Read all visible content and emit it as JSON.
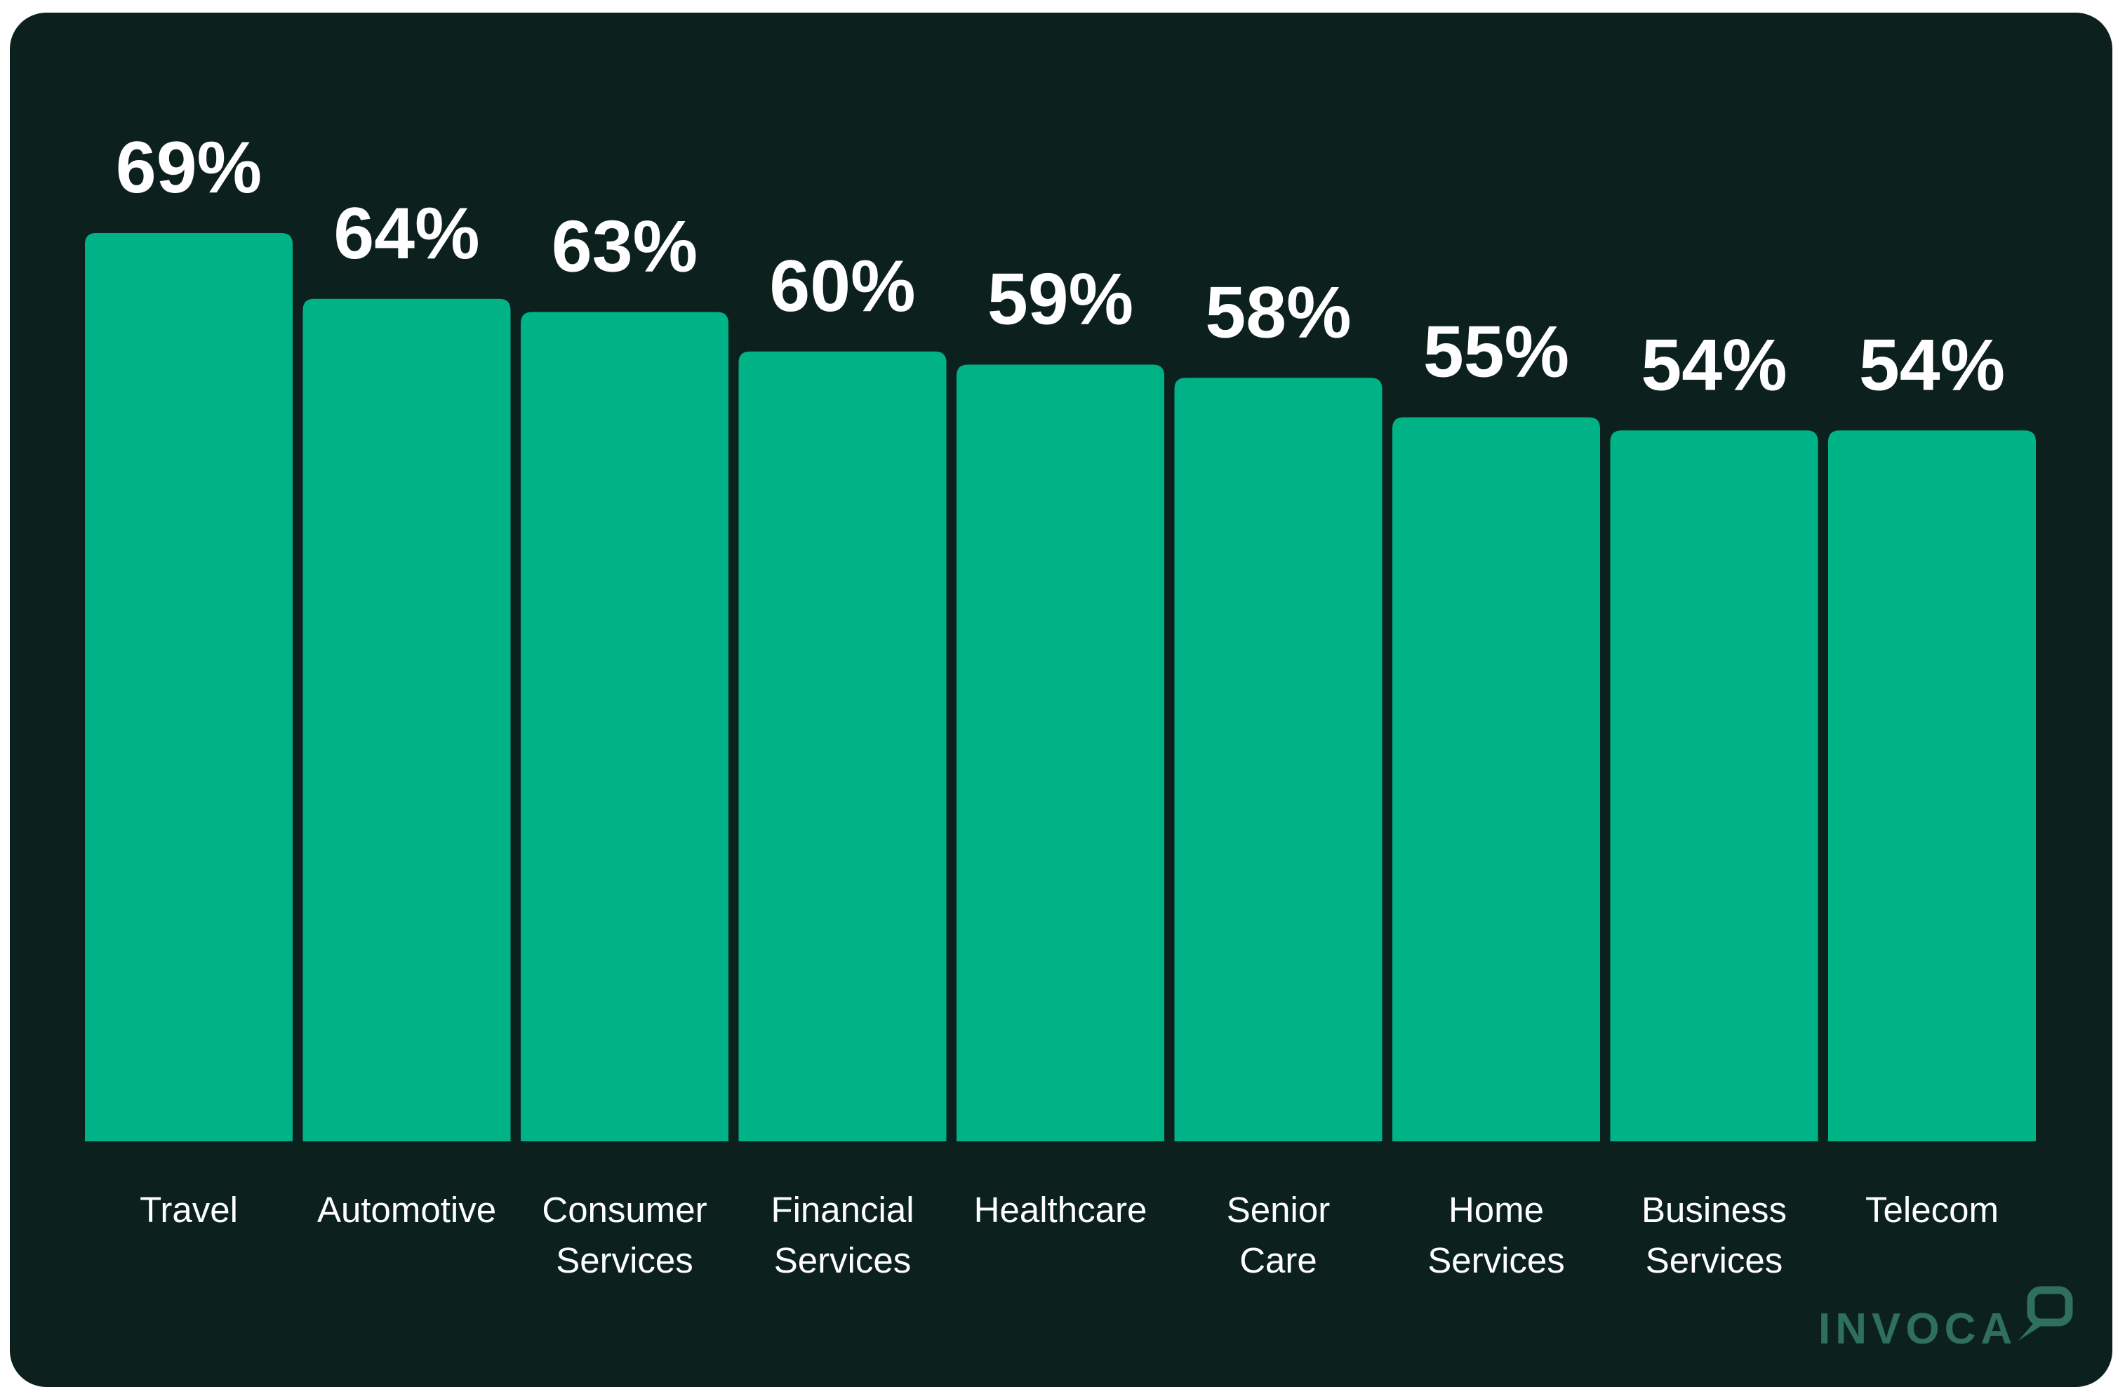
{
  "chart_data": {
    "type": "bar",
    "categories": [
      "Travel",
      "Automotive",
      "Consumer Services",
      "Financial Services",
      "Healthcare",
      "Senior Care",
      "Home Services",
      "Business Services",
      "Telecom"
    ],
    "category_lines": [
      [
        "Travel"
      ],
      [
        "Automotive"
      ],
      [
        "Consumer",
        "Services"
      ],
      [
        "Financial",
        "Services"
      ],
      [
        "Healthcare"
      ],
      [
        "Senior",
        "Care"
      ],
      [
        "Home",
        "Services"
      ],
      [
        "Business",
        "Services"
      ],
      [
        "Telecom"
      ]
    ],
    "values": [
      69,
      64,
      63,
      60,
      59,
      58,
      55,
      54,
      54
    ],
    "value_labels": [
      "69%",
      "64%",
      "63%",
      "60%",
      "59%",
      "58%",
      "55%",
      "54%",
      "54%"
    ],
    "unit": "%",
    "title": "",
    "xlabel": "",
    "ylabel": "",
    "grid": false,
    "legend": "none"
  },
  "colors": {
    "background": "#0c211d",
    "bar": "#00b386",
    "text": "#ffffff",
    "logo": "#2f6f5e"
  },
  "logo": {
    "text": "INVOCA",
    "icon": "speech-bubble-icon"
  }
}
